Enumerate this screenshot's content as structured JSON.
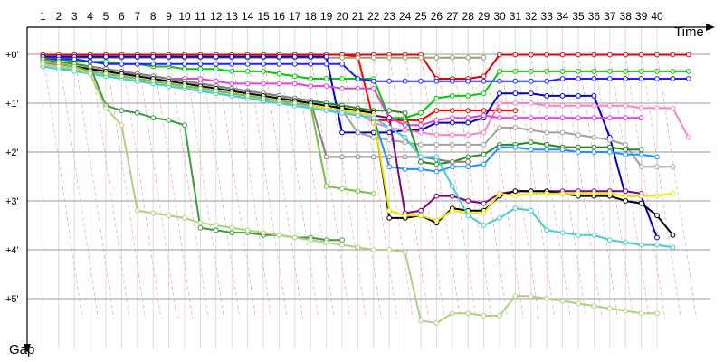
{
  "chart_data": {
    "type": "line",
    "xlabel": "Time",
    "ylabel": "Gap",
    "x_ticks": [
      "1",
      "2",
      "3",
      "4",
      "5",
      "6",
      "7",
      "8",
      "9",
      "10",
      "11",
      "12",
      "13",
      "14",
      "15",
      "16",
      "17",
      "18",
      "19",
      "20",
      "21",
      "22",
      "23",
      "24",
      "25",
      "26",
      "27",
      "28",
      "29",
      "30",
      "31",
      "32",
      "33",
      "34",
      "35",
      "36",
      "37",
      "38",
      "39",
      "40"
    ],
    "y_ticks": [
      "+0'",
      "+1'",
      "+2'",
      "+3'",
      "+4'",
      "+5'"
    ],
    "xlim": [
      0,
      43
    ],
    "ylim": [
      0,
      5.7
    ],
    "grid": true,
    "legend": "none",
    "series": [
      {
        "color": "#ff0000",
        "values": [
          0.01,
          0.01,
          0.01,
          0.01,
          0.01,
          0.01,
          0.01,
          0.01,
          0.01,
          0.01,
          0.01,
          0.01,
          0.01,
          0.01,
          0.01,
          0.01,
          0.01,
          0.01,
          0.01,
          0.01,
          0.05,
          1.35,
          1.35,
          1.35,
          1.35,
          1.15,
          1.15,
          1.15,
          1.15,
          1.15,
          1.15,
          null,
          null,
          null,
          null,
          null,
          null,
          null,
          null,
          null,
          null,
          null,
          null
        ]
      },
      {
        "color": "#e00000",
        "values": [
          0.01,
          0.01,
          0.01,
          0.01,
          0.01,
          0.01,
          0.01,
          0.01,
          0.01,
          0.01,
          0.01,
          0.01,
          0.01,
          0.01,
          0.01,
          0.01,
          0.01,
          0.01,
          0.01,
          0.01,
          0.01,
          0.01,
          0.01,
          0.01,
          0.01,
          0.5,
          0.5,
          0.5,
          0.45,
          0.01,
          0.01,
          0.01,
          0.01,
          0.01,
          0.01,
          0.01,
          0.01,
          0.01,
          0.01,
          0.01,
          0.01,
          0.01,
          null
        ]
      },
      {
        "color": "#9e9e6e",
        "values": [
          0.07,
          0.07,
          0.07,
          0.07,
          0.07,
          0.07,
          0.07,
          0.07,
          0.07,
          0.07,
          0.07,
          0.07,
          0.07,
          0.07,
          0.07,
          0.07,
          0.07,
          0.07,
          0.07,
          0.07,
          0.07,
          0.07,
          0.07,
          0.07,
          0.07,
          0.07,
          0.07,
          0.07,
          0.07,
          null,
          null,
          null,
          null,
          null,
          null,
          null,
          null,
          null,
          null,
          null,
          null,
          null,
          null
        ]
      },
      {
        "color": "#00cc00",
        "values": [
          0.1,
          0.1,
          0.15,
          0.15,
          0.15,
          0.2,
          0.2,
          0.25,
          0.25,
          0.3,
          0.3,
          0.3,
          0.35,
          0.35,
          0.35,
          0.4,
          0.45,
          0.5,
          0.5,
          0.5,
          0.5,
          0.5,
          1.3,
          1.3,
          1.2,
          0.9,
          0.85,
          0.85,
          0.8,
          0.35,
          0.35,
          0.35,
          0.35,
          0.35,
          0.35,
          0.35,
          0.35,
          0.35,
          0.35,
          0.35,
          0.35,
          0.35,
          null
        ]
      },
      {
        "color": "#0000cc",
        "values": [
          0.05,
          0.05,
          0.05,
          0.05,
          0.05,
          0.05,
          0.05,
          0.05,
          0.05,
          0.05,
          0.05,
          0.05,
          0.05,
          0.05,
          0.05,
          0.05,
          0.05,
          0.05,
          0.05,
          1.6,
          1.6,
          1.6,
          1.6,
          1.55,
          1.55,
          1.4,
          1.4,
          1.4,
          1.3,
          0.8,
          0.8,
          0.8,
          0.85,
          0.85,
          0.85,
          0.85,
          1.7,
          2.9,
          2.9,
          3.75,
          null,
          null,
          null
        ]
      },
      {
        "color": "#2020ff",
        "values": [
          0.1,
          0.1,
          0.1,
          0.15,
          0.2,
          0.2,
          0.2,
          0.2,
          0.2,
          0.2,
          0.2,
          0.2,
          0.2,
          0.2,
          0.2,
          0.2,
          0.2,
          0.2,
          0.2,
          0.2,
          0.5,
          0.55,
          0.55,
          0.55,
          0.55,
          0.55,
          0.55,
          0.55,
          0.55,
          0.55,
          0.55,
          0.55,
          0.55,
          0.5,
          0.5,
          0.5,
          0.5,
          0.5,
          0.5,
          0.5,
          0.5,
          0.5,
          null
        ]
      },
      {
        "color": "#ff80c0",
        "values": [
          0.2,
          0.25,
          0.3,
          0.35,
          0.4,
          0.45,
          0.5,
          0.55,
          0.6,
          0.65,
          0.7,
          0.75,
          0.8,
          0.85,
          0.9,
          0.95,
          1.0,
          1.05,
          1.1,
          1.15,
          1.2,
          1.4,
          1.5,
          1.55,
          1.6,
          1.65,
          1.65,
          1.65,
          1.6,
          1.0,
          1.0,
          1.0,
          1.05,
          1.05,
          1.05,
          1.05,
          1.05,
          1.05,
          1.1,
          1.1,
          1.1,
          1.7,
          null
        ]
      },
      {
        "color": "#e040e0",
        "values": [
          0.2,
          0.2,
          0.25,
          0.3,
          0.35,
          0.4,
          0.4,
          0.45,
          0.5,
          0.5,
          0.5,
          0.55,
          0.6,
          0.6,
          0.6,
          0.6,
          0.6,
          0.65,
          0.65,
          0.7,
          0.7,
          0.7,
          1.3,
          1.45,
          1.45,
          1.35,
          1.3,
          1.3,
          1.25,
          1.3,
          1.3,
          1.3,
          1.3,
          1.3,
          1.3,
          1.3,
          1.3,
          1.3,
          1.3,
          null,
          null,
          null,
          null
        ]
      },
      {
        "color": "#a0a0a0",
        "values": [
          0.25,
          0.3,
          0.3,
          0.35,
          0.4,
          0.45,
          0.5,
          0.55,
          0.6,
          0.65,
          0.7,
          0.75,
          0.8,
          0.85,
          0.9,
          0.95,
          1.0,
          1.05,
          1.1,
          1.15,
          1.6,
          1.7,
          1.75,
          1.8,
          1.85,
          1.85,
          1.85,
          1.85,
          1.85,
          1.5,
          1.5,
          1.55,
          1.6,
          1.6,
          1.65,
          1.7,
          1.75,
          1.85,
          2.3,
          2.3,
          2.3,
          null,
          null
        ]
      },
      {
        "color": "#228B22",
        "values": [
          0.1,
          0.15,
          0.2,
          0.25,
          0.3,
          0.35,
          0.4,
          0.45,
          0.5,
          0.55,
          0.6,
          0.65,
          0.7,
          0.75,
          0.8,
          0.85,
          0.9,
          0.95,
          1.0,
          1.05,
          1.1,
          1.15,
          1.15,
          1.2,
          2.2,
          2.25,
          2.2,
          2.1,
          2.05,
          1.85,
          1.85,
          1.8,
          1.85,
          1.9,
          1.9,
          1.9,
          1.9,
          1.95,
          1.95,
          null,
          null,
          null,
          null
        ]
      },
      {
        "color": "#1e90ff",
        "values": [
          0.2,
          0.25,
          0.3,
          0.4,
          0.45,
          0.5,
          0.55,
          0.6,
          0.65,
          0.7,
          0.75,
          0.8,
          0.85,
          0.9,
          0.95,
          1.0,
          1.05,
          1.1,
          1.15,
          1.2,
          1.25,
          1.3,
          2.3,
          2.35,
          2.35,
          2.4,
          2.3,
          2.3,
          2.25,
          1.9,
          1.9,
          1.95,
          1.95,
          1.95,
          2.0,
          2.0,
          2.0,
          2.05,
          2.05,
          2.1,
          null,
          null,
          null
        ]
      },
      {
        "color": "#808080",
        "values": [
          0.1,
          0.15,
          0.2,
          0.25,
          0.3,
          0.35,
          0.4,
          0.45,
          0.5,
          0.55,
          0.6,
          0.65,
          0.7,
          0.75,
          0.8,
          0.85,
          0.9,
          0.95,
          2.1,
          2.1,
          2.1,
          2.1,
          2.1,
          2.1,
          2.1,
          2.15,
          2.2,
          2.2,
          null,
          null,
          null,
          null,
          null,
          null,
          null,
          null,
          null,
          null,
          null,
          null,
          null,
          null,
          null
        ]
      },
      {
        "color": "#800080",
        "values": [
          0.2,
          0.25,
          0.3,
          0.35,
          0.4,
          0.45,
          0.5,
          0.55,
          0.6,
          0.65,
          0.7,
          0.75,
          0.8,
          0.85,
          0.9,
          0.95,
          1.0,
          1.05,
          1.1,
          1.15,
          1.2,
          1.25,
          1.3,
          3.25,
          3.2,
          2.9,
          2.9,
          3.0,
          3.05,
          2.85,
          2.8,
          2.8,
          2.8,
          2.8,
          2.8,
          2.8,
          2.8,
          2.8,
          2.85,
          null,
          null,
          null,
          null
        ]
      },
      {
        "color": "#000000",
        "values": [
          0.15,
          0.2,
          0.25,
          0.3,
          0.35,
          0.4,
          0.45,
          0.5,
          0.55,
          0.6,
          0.65,
          0.7,
          0.75,
          0.8,
          0.85,
          0.9,
          0.95,
          1.0,
          1.05,
          1.1,
          1.15,
          1.2,
          3.35,
          3.35,
          3.3,
          3.45,
          3.15,
          3.2,
          3.2,
          2.9,
          2.8,
          2.8,
          2.8,
          2.85,
          2.9,
          2.9,
          2.9,
          3.0,
          3.05,
          3.3,
          3.7,
          null,
          null
        ]
      },
      {
        "color": "#e8e800",
        "values": [
          0.2,
          0.25,
          0.3,
          0.35,
          0.4,
          0.45,
          0.5,
          0.55,
          0.6,
          0.65,
          0.7,
          0.75,
          0.8,
          0.85,
          0.9,
          0.95,
          1.0,
          1.05,
          1.1,
          1.15,
          1.2,
          1.25,
          3.2,
          3.3,
          3.3,
          3.4,
          3.2,
          3.25,
          3.25,
          2.85,
          2.9,
          2.85,
          2.85,
          2.85,
          2.85,
          2.85,
          2.85,
          2.9,
          2.9,
          2.9,
          2.85,
          null,
          null
        ]
      },
      {
        "color": "#40d0d0",
        "values": [
          0.25,
          0.3,
          0.35,
          0.4,
          0.45,
          0.5,
          0.55,
          0.6,
          0.65,
          0.7,
          0.75,
          0.8,
          0.85,
          0.9,
          0.95,
          1.0,
          1.05,
          1.1,
          1.15,
          1.2,
          1.25,
          1.3,
          1.5,
          1.7,
          2.1,
          2.1,
          2.7,
          3.3,
          3.5,
          3.35,
          3.15,
          3.2,
          3.6,
          3.65,
          3.7,
          3.7,
          3.8,
          3.85,
          3.9,
          3.9,
          3.95,
          null,
          null
        ]
      },
      {
        "color": "#3a9a3a",
        "values": [
          0.1,
          0.15,
          0.2,
          0.25,
          1.05,
          1.15,
          1.2,
          1.3,
          1.35,
          1.45,
          3.55,
          3.6,
          3.65,
          3.65,
          3.7,
          3.7,
          3.75,
          3.75,
          3.8,
          3.8,
          null,
          null,
          null,
          null,
          null,
          null,
          null,
          null,
          null,
          null,
          null,
          null,
          null,
          null,
          null,
          null,
          null,
          null,
          null,
          null,
          null,
          null,
          null
        ]
      },
      {
        "color": "#7ac142",
        "values": [
          0.15,
          0.2,
          0.25,
          0.35,
          0.4,
          0.45,
          0.5,
          0.55,
          0.6,
          0.65,
          0.7,
          0.75,
          0.8,
          0.85,
          0.9,
          0.95,
          1.0,
          1.05,
          2.7,
          2.75,
          2.8,
          2.85,
          null,
          null,
          null,
          null,
          null,
          null,
          null,
          null,
          null,
          null,
          null,
          null,
          null,
          null,
          null,
          null,
          null,
          null,
          null,
          null,
          null
        ]
      },
      {
        "color": "#b0d080",
        "values": [
          0.2,
          0.25,
          0.3,
          0.4,
          1.1,
          1.45,
          3.2,
          3.25,
          3.3,
          3.35,
          3.45,
          3.5,
          3.55,
          3.6,
          3.65,
          3.7,
          3.75,
          3.8,
          3.85,
          3.9,
          3.95,
          4.0,
          4.0,
          4.05,
          5.45,
          5.5,
          5.3,
          5.3,
          5.35,
          5.35,
          4.95,
          4.95,
          5.0,
          5.05,
          5.1,
          5.15,
          5.2,
          5.25,
          5.3,
          5.3,
          null,
          null,
          null
        ]
      }
    ]
  }
}
